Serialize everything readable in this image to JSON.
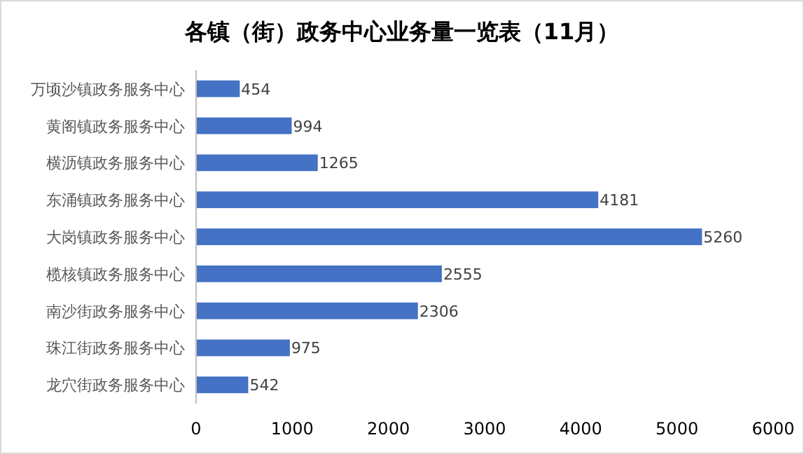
{
  "chart_data": {
    "type": "bar",
    "orientation": "horizontal",
    "title": "各镇（街）政务中心业务量一览表（11月）",
    "categories": [
      "万顷沙镇政务服务中心",
      "黄阁镇政务服务中心",
      "横沥镇政务服务中心",
      "东涌镇政务服务中心",
      "大岗镇政务服务中心",
      "榄核镇政务服务中心",
      "南沙街政务服务中心",
      "珠江街政务服务中心",
      "龙穴街政务服务中心"
    ],
    "values": [
      454,
      994,
      1265,
      4181,
      5260,
      2555,
      2306,
      975,
      542
    ],
    "color": "#4472c4",
    "xlim": [
      0,
      6000
    ],
    "xticks": [
      0,
      1000,
      2000,
      3000,
      4000,
      5000,
      6000
    ],
    "data_labels": true,
    "grid": false
  }
}
